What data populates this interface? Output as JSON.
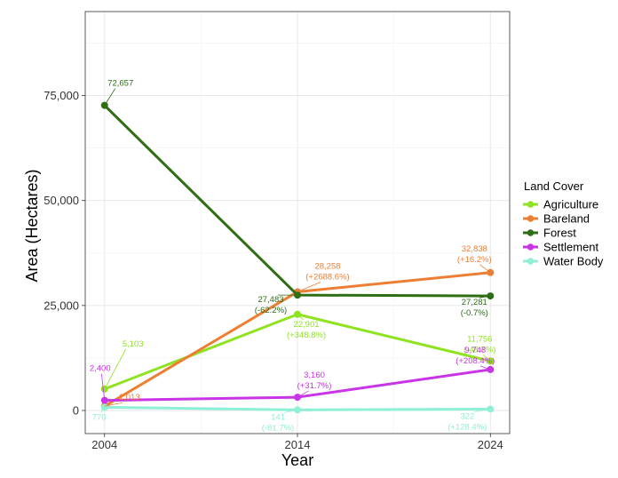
{
  "chart_data": {
    "type": "line",
    "title": "",
    "xlabel": "Year",
    "ylabel": "Area (Hectares)",
    "x": [
      2004,
      2014,
      2024
    ],
    "x_ticks": [
      "2004",
      "2014",
      "2024"
    ],
    "ylim": [
      -5500,
      95000
    ],
    "y_ticks": [
      0,
      25000,
      50000,
      75000
    ],
    "y_tick_labels": [
      "0",
      "25,000",
      "50,000",
      "75,000"
    ],
    "grid": true,
    "legend_title": "Land Cover",
    "legend_position": "right",
    "series": [
      {
        "name": "Agriculture",
        "color": "#8fe321",
        "values": [
          5103,
          22901,
          11756
        ],
        "labels": [
          [
            "5,103"
          ],
          [
            "22,901",
            "(+348.8%)"
          ],
          [
            "11,756",
            "(-48.7%)"
          ]
        ]
      },
      {
        "name": "Bareland",
        "color": "#ec7f34",
        "values": [
          1013,
          28258,
          32838
        ],
        "labels": [
          [
            "1,013"
          ],
          [
            "28,258",
            "(+2688.6%)"
          ],
          [
            "32,838",
            "(+16.2%)"
          ]
        ]
      },
      {
        "name": "Forest",
        "color": "#2e6e14",
        "values": [
          72657,
          27483,
          27281
        ],
        "labels": [
          [
            "72,657"
          ],
          [
            "27,483",
            "(-62.2%)"
          ],
          [
            "27,281",
            "(-0.7%)"
          ]
        ]
      },
      {
        "name": "Settlement",
        "color": "#c934e6",
        "values": [
          2400,
          3160,
          9748
        ],
        "labels": [
          [
            "2,400"
          ],
          [
            "3,160",
            "(+31.7%)"
          ],
          [
            "9,748",
            "(+208.4%)"
          ]
        ]
      },
      {
        "name": "Water Body",
        "color": "#8ff0d6",
        "values": [
          770,
          141,
          322
        ],
        "labels": [
          [
            "770"
          ],
          [
            "141",
            "(-81.7%)"
          ],
          [
            "322",
            "(+128.4%)"
          ]
        ]
      }
    ]
  }
}
